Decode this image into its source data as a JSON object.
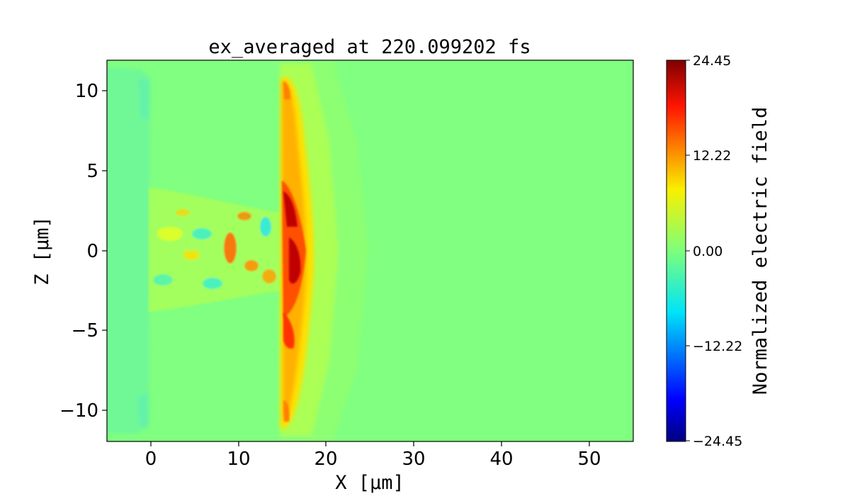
{
  "chart_data": {
    "type": "heatmap",
    "title": "ex_averaged at 220.099202 fs",
    "xlabel": "X [μm]",
    "ylabel": "Z [μm]",
    "xlim": [
      -5,
      55
    ],
    "ylim": [
      -12,
      12
    ],
    "x_ticks": [
      0,
      10,
      20,
      30,
      40,
      50
    ],
    "x_tick_labels": [
      "0",
      "10",
      "20",
      "30",
      "40",
      "50"
    ],
    "y_ticks": [
      10,
      5,
      0,
      -5,
      -10
    ],
    "y_tick_labels": [
      "10",
      "5",
      "0",
      "−5",
      "−10"
    ],
    "colormap": "jet",
    "background_color": "#80ff80",
    "colorbar": {
      "label": "Normalized electric field",
      "vmin": -24.45,
      "vmax": 24.45,
      "ticks": [
        24.45,
        12.22,
        0.0,
        -12.22,
        -24.45
      ],
      "tick_labels": [
        "24.45",
        "12.22",
        "0.00",
        "−12.22",
        "−24.45"
      ]
    },
    "features": [
      {
        "name": "shock-front",
        "x_range": [
          14.5,
          18.5
        ],
        "z_range": [
          -10.5,
          10.5
        ],
        "peak_value": 24.45
      },
      {
        "name": "turbulent-channel",
        "x_range": [
          0,
          15
        ],
        "z_range": [
          -3.5,
          3.5
        ]
      },
      {
        "name": "left-boundary-layer",
        "x_range": [
          -5,
          0
        ],
        "z_range": [
          -11,
          11
        ]
      }
    ],
    "grid": false
  }
}
